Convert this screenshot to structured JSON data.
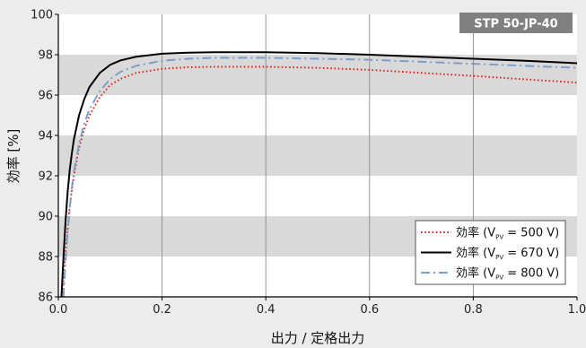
{
  "chart_data": {
    "type": "line",
    "title": "",
    "badge": "STP 50-JP-40",
    "xlabel": "出力 / 定格出力",
    "ylabel": "効率 [%]",
    "xlim": [
      0.0,
      1.0
    ],
    "ylim": [
      86,
      100
    ],
    "x_ticks": [
      0.0,
      0.2,
      0.4,
      0.6,
      0.8,
      1.0
    ],
    "x_tick_labels": [
      "0.0",
      "0.2",
      "0.4",
      "0.6",
      "0.8",
      "1.0"
    ],
    "y_ticks": [
      86,
      88,
      90,
      92,
      94,
      96,
      98,
      100
    ],
    "y_tick_labels": [
      "86",
      "88",
      "90",
      "92",
      "94",
      "96",
      "98",
      "100"
    ],
    "grid": "vertical gridlines, alternating grey horizontal bands",
    "bands": [
      [
        88,
        90
      ],
      [
        92,
        94
      ],
      [
        96,
        98
      ]
    ],
    "legend_position": "bottom-right",
    "series": [
      {
        "name": "効率 (VPV = 500 V)",
        "label_main": "効率 (V",
        "label_sub": "PV",
        "label_tail": " = 500 V)",
        "color": "#e02020",
        "style": "dotted",
        "x": [
          0.008,
          0.012,
          0.016,
          0.02,
          0.025,
          0.03,
          0.04,
          0.05,
          0.06,
          0.08,
          0.1,
          0.12,
          0.15,
          0.2,
          0.25,
          0.3,
          0.4,
          0.5,
          0.6,
          0.7,
          0.8,
          0.9,
          1.0
        ],
        "y": [
          86.0,
          87.6,
          88.8,
          90.0,
          91.1,
          92.0,
          93.4,
          94.3,
          95.0,
          95.9,
          96.5,
          96.8,
          97.1,
          97.3,
          97.38,
          97.4,
          97.4,
          97.35,
          97.25,
          97.1,
          96.95,
          96.78,
          96.62
        ]
      },
      {
        "name": "効率 (VPV = 670 V)",
        "label_main": "効率 (V",
        "label_sub": "PV",
        "label_tail": " = 670 V)",
        "color": "#000000",
        "style": "solid",
        "x": [
          0.006,
          0.01,
          0.014,
          0.018,
          0.022,
          0.026,
          0.03,
          0.04,
          0.05,
          0.06,
          0.08,
          0.1,
          0.12,
          0.15,
          0.2,
          0.25,
          0.3,
          0.4,
          0.5,
          0.6,
          0.7,
          0.8,
          0.9,
          1.0
        ],
        "y": [
          86.0,
          88.0,
          89.8,
          91.2,
          92.3,
          93.1,
          93.8,
          95.0,
          95.8,
          96.4,
          97.1,
          97.5,
          97.72,
          97.9,
          98.05,
          98.1,
          98.12,
          98.12,
          98.08,
          98.0,
          97.9,
          97.8,
          97.7,
          97.58
        ]
      },
      {
        "name": "効率 (VPV = 800 V)",
        "label_main": "効率 (V",
        "label_sub": "PV",
        "label_tail": " = 800 V)",
        "color": "#7a9cc9",
        "style": "dashdot",
        "x": [
          0.01,
          0.014,
          0.018,
          0.022,
          0.026,
          0.03,
          0.04,
          0.05,
          0.06,
          0.08,
          0.1,
          0.12,
          0.15,
          0.2,
          0.25,
          0.3,
          0.4,
          0.5,
          0.6,
          0.7,
          0.8,
          0.9,
          1.0
        ],
        "y": [
          86.0,
          87.8,
          89.2,
          90.4,
          91.4,
          92.2,
          93.6,
          94.6,
          95.3,
          96.2,
          96.8,
          97.15,
          97.45,
          97.7,
          97.8,
          97.85,
          97.85,
          97.8,
          97.75,
          97.65,
          97.55,
          97.45,
          97.35
        ]
      }
    ]
  }
}
